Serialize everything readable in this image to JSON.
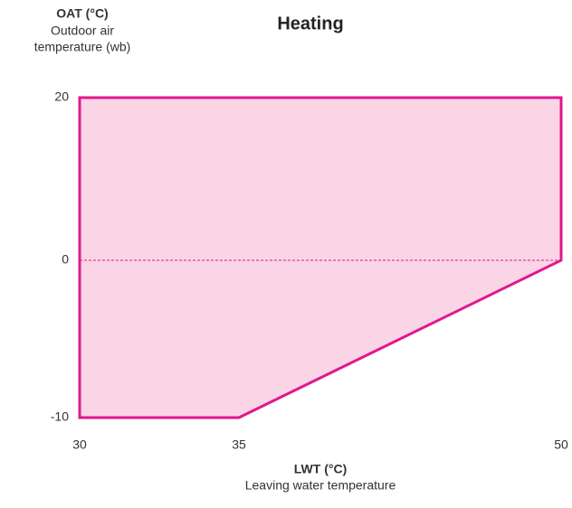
{
  "chart_data": {
    "type": "area",
    "title": "Heating",
    "y_label": {
      "title": "OAT (°C)",
      "lines": [
        "Outdoor air",
        "temperature (wb)"
      ]
    },
    "x_label": {
      "title": "LWT (°C)",
      "lines": [
        "Leaving water temperature"
      ]
    },
    "series": [
      {
        "x": [
          30,
          50,
          50,
          35,
          30
        ],
        "values": [
          20,
          20,
          0,
          -10,
          -10
        ],
        "color": "#e2178d",
        "fill": "#f9d5e6"
      }
    ],
    "xlim": [
      30,
      50
    ],
    "ylim": [
      -10,
      20
    ],
    "xticks": [
      30,
      35,
      50
    ],
    "yticks": [
      -10,
      0,
      20
    ],
    "hline": 0
  }
}
